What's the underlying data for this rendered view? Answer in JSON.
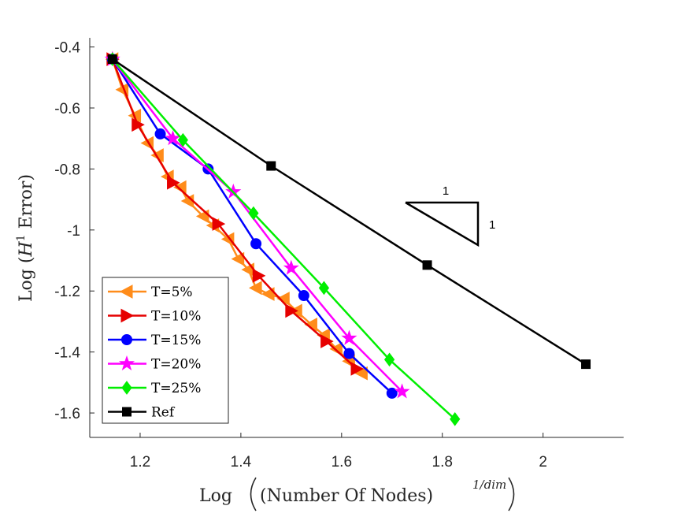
{
  "chart_data": {
    "type": "line",
    "xlabel": "Log ((Number Of Nodes)^{1/dim})",
    "xlabel_parts": {
      "prefix": "Log ",
      "main": "(Number Of Nodes)",
      "sup": "1/dim"
    },
    "ylabel": "Log (H^1 Error)",
    "ylabel_parts": {
      "prefix": "Log ",
      "sym": "H",
      "sup": "1",
      "suffix": " Error"
    },
    "xlim": [
      1.1,
      2.16
    ],
    "ylim": [
      -1.68,
      -0.37
    ],
    "xticks": [
      1.2,
      1.4,
      1.6,
      1.8,
      2
    ],
    "xtick_labels": [
      "1.2",
      "1.4",
      "1.6",
      "1.8",
      "2"
    ],
    "yticks": [
      -0.4,
      -0.6,
      -0.8,
      -1,
      -1.2,
      -1.4,
      -1.6
    ],
    "ytick_labels": [
      "-0.4",
      "-0.6",
      "-0.8",
      "-1",
      "-1.2",
      "-1.4",
      "-1.6"
    ],
    "legend_position": "bottom-left",
    "grid": false,
    "series": [
      {
        "name": "T=5%",
        "color": "#ff8c1a",
        "marker": "triangle-left",
        "x": [
          1.145,
          1.165,
          1.19,
          1.215,
          1.235,
          1.255,
          1.28,
          1.295,
          1.325,
          1.345,
          1.375,
          1.395,
          1.415,
          1.43,
          1.455,
          1.485,
          1.51,
          1.54,
          1.565,
          1.59,
          1.615,
          1.64
        ],
        "y": [
          -0.44,
          -0.54,
          -0.625,
          -0.715,
          -0.755,
          -0.825,
          -0.86,
          -0.905,
          -0.955,
          -0.985,
          -1.03,
          -1.095,
          -1.13,
          -1.19,
          -1.21,
          -1.225,
          -1.265,
          -1.31,
          -1.345,
          -1.39,
          -1.43,
          -1.47
        ]
      },
      {
        "name": "T=10%",
        "color": "#e60000",
        "marker": "triangle-right",
        "x": [
          1.145,
          1.195,
          1.265,
          1.355,
          1.435,
          1.5,
          1.57,
          1.63
        ],
        "y": [
          -0.44,
          -0.655,
          -0.845,
          -0.98,
          -1.15,
          -1.265,
          -1.365,
          -1.455
        ]
      },
      {
        "name": "T=15%",
        "color": "#0000ff",
        "marker": "circle",
        "x": [
          1.145,
          1.24,
          1.335,
          1.43,
          1.525,
          1.615,
          1.7
        ],
        "y": [
          -0.44,
          -0.685,
          -0.8,
          -1.045,
          -1.215,
          -1.405,
          -1.535
        ]
      },
      {
        "name": "T=20%",
        "color": "#ff00ff",
        "marker": "star",
        "x": [
          1.145,
          1.265,
          1.385,
          1.5,
          1.615,
          1.72
        ],
        "y": [
          -0.44,
          -0.7,
          -0.875,
          -1.125,
          -1.355,
          -1.53
        ]
      },
      {
        "name": "T=25%",
        "color": "#00ee00",
        "marker": "diamond",
        "x": [
          1.145,
          1.285,
          1.425,
          1.565,
          1.695,
          1.825
        ],
        "y": [
          -0.44,
          -0.705,
          -0.945,
          -1.19,
          -1.425,
          -1.62
        ]
      },
      {
        "name": "Ref",
        "color": "#000000",
        "marker": "square",
        "x": [
          1.145,
          1.46,
          1.77,
          2.085
        ],
        "y": [
          -0.44,
          -0.79,
          -1.115,
          -1.44
        ]
      }
    ],
    "annotations": [
      {
        "type": "slope-triangle",
        "run_label": "1",
        "rise_label": "1"
      }
    ]
  }
}
